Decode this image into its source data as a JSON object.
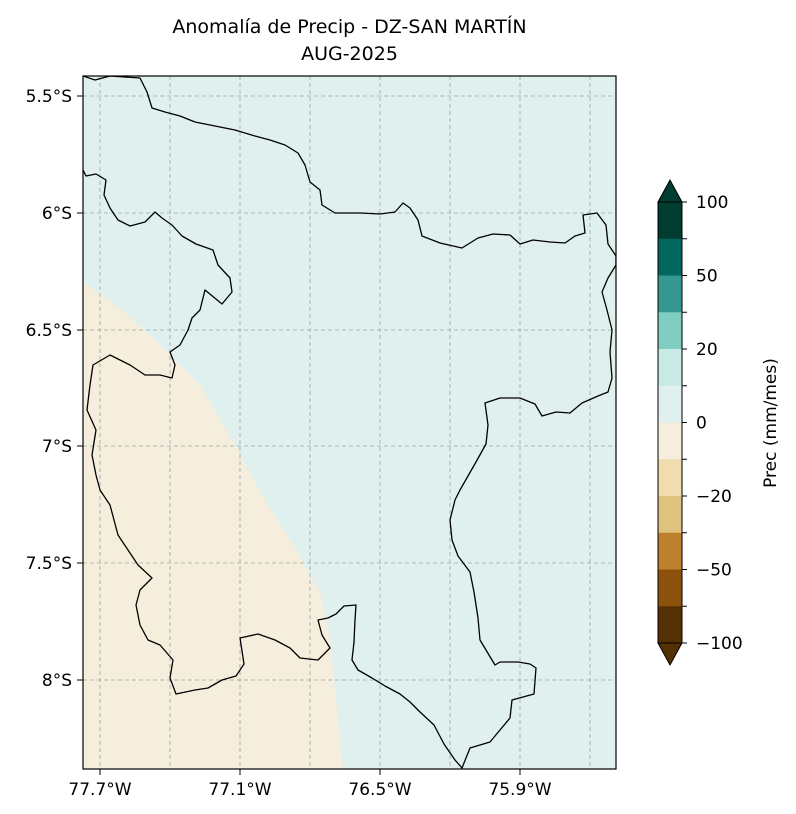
{
  "title": {
    "line1": "Anomalía de Precip - DZ-SAN MARTÍN",
    "line2": "AUG-2025"
  },
  "map": {
    "lat_ticks": [
      "5.5°S",
      "6°S",
      "6.5°S",
      "7°S",
      "7.5°S",
      "8°S"
    ],
    "lon_ticks": [
      "77.7°W",
      "77.1°W",
      "76.5°W",
      "75.9°W"
    ],
    "fill_colors": {
      "positive_0_10": "#dff0ef",
      "negative_0_10": "#f5eedc"
    },
    "border_color": "#000000",
    "gridlines": true
  },
  "colorbar": {
    "label": "Prec (mm/mes)",
    "tick_labels": [
      "100",
      "50",
      "20",
      "0",
      "−20",
      "−50",
      "−100"
    ],
    "colors_top_to_bottom": [
      "#003c30",
      "#01665e",
      "#35978f",
      "#80cdc1",
      "#c7eae5",
      "#dff0ef",
      "#f5eedc",
      "#f0dcad",
      "#dfc27d",
      "#bf812d",
      "#8c510a",
      "#543005"
    ],
    "extend": "both"
  }
}
